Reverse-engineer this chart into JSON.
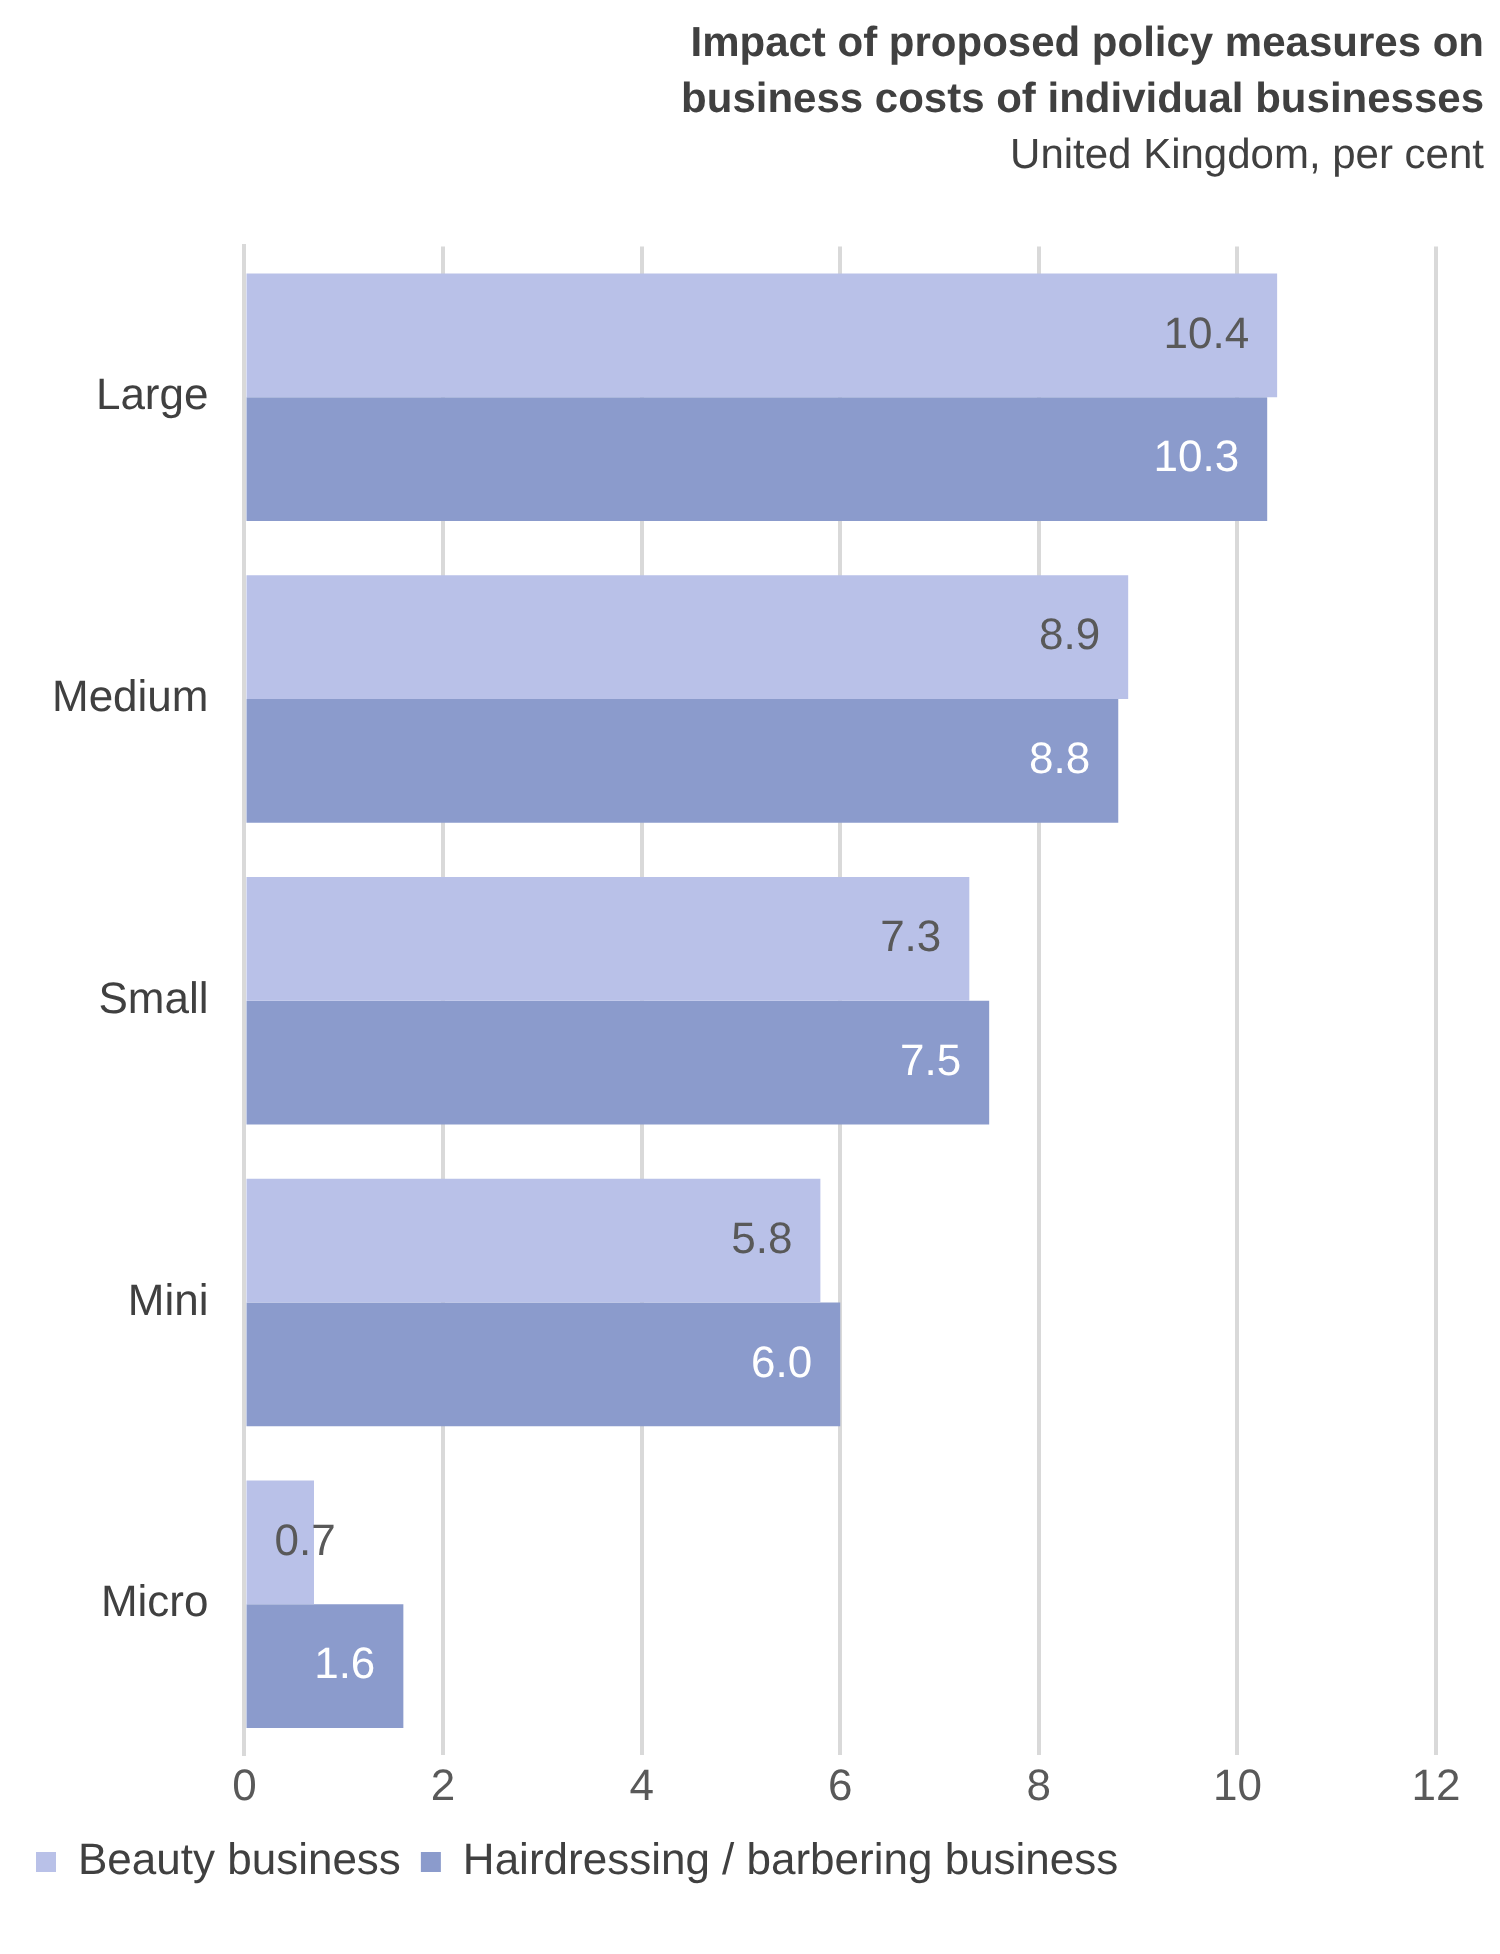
{
  "chart_data": {
    "type": "bar",
    "orientation": "horizontal",
    "title": "Impact of proposed policy measures on business costs of individual businesses",
    "subtitle": "United Kingdom, per cent",
    "categories": [
      "Large",
      "Medium",
      "Small",
      "Mini",
      "Micro"
    ],
    "series": [
      {
        "name": "Beauty business",
        "color": "#b9c1e8",
        "values": [
          10.4,
          8.9,
          7.3,
          5.8,
          0.7
        ],
        "value_labels": [
          "10.4",
          "8.9",
          "7.3",
          "5.8",
          "0.7"
        ]
      },
      {
        "name": "Hairdressing / barbering business",
        "color": "#8b9bcc",
        "values": [
          10.3,
          8.8,
          7.5,
          6.0,
          1.6
        ],
        "value_labels": [
          "10.3",
          "8.8",
          "7.5",
          "6.0",
          "1.6"
        ]
      }
    ],
    "xlim": [
      0,
      12
    ],
    "xticks": [
      0,
      2,
      4,
      6,
      8,
      10,
      12
    ],
    "grid": "x",
    "legend": "bottom left"
  }
}
